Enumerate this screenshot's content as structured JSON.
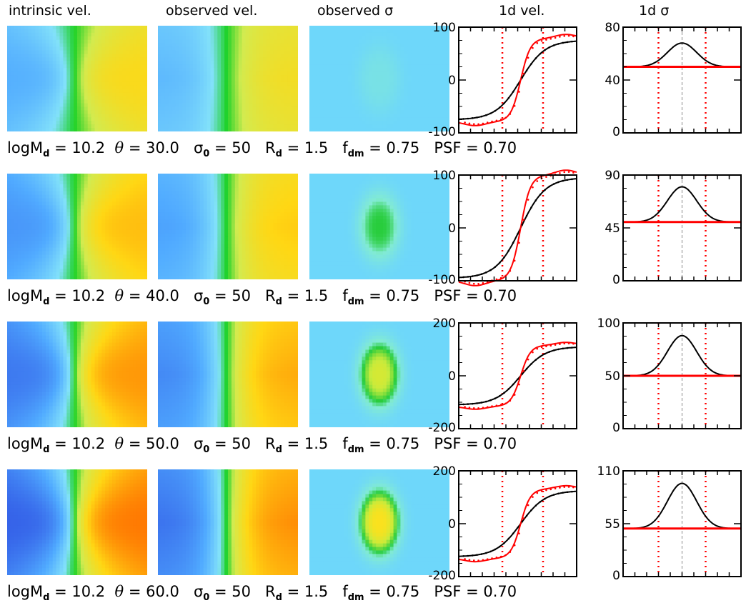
{
  "headers": {
    "intrinsic": "intrinsic vel.",
    "observed_vel": "observed vel.",
    "observed_sigma": "observed σ",
    "vel1d": "1d vel.",
    "sigma1d": "1d σ"
  },
  "colors": {
    "model_curve": "#000000",
    "data_curve": "#ff0000",
    "psf_lines": "#ff0000",
    "center_line": "#888888"
  },
  "rows": [
    {
      "params": {
        "logMd": "10.2",
        "theta": "30.0",
        "sigma0": "50",
        "Rd": "1.5",
        "fdm": "0.75",
        "psf": "0.70"
      },
      "maps": {
        "intr_amp": 0.45,
        "obs_amp": 0.42,
        "sig_strength": 0.18
      },
      "vel_plot": {
        "ylim": [
          -100,
          100
        ],
        "yticks": [
          "100",
          "0",
          "-100"
        ]
      },
      "sig_plot": {
        "ylim": [
          0,
          80
        ],
        "yticks": [
          "80",
          "40",
          "0"
        ],
        "peak": 68,
        "base": 50
      }
    },
    {
      "params": {
        "logMd": "10.2",
        "theta": "40.0",
        "sigma0": "50",
        "Rd": "1.5",
        "fdm": "0.75",
        "psf": "0.70"
      },
      "maps": {
        "intr_amp": 0.6,
        "obs_amp": 0.56,
        "sig_strength": 0.55
      },
      "vel_plot": {
        "ylim": [
          -100,
          100
        ],
        "yticks": [
          "100",
          "0",
          "-100"
        ]
      },
      "sig_plot": {
        "ylim": [
          0,
          90
        ],
        "yticks": [
          "90",
          "45",
          "0"
        ],
        "peak": 80,
        "base": 50
      }
    },
    {
      "params": {
        "logMd": "10.2",
        "theta": "50.0",
        "sigma0": "50",
        "Rd": "1.5",
        "fdm": "0.75",
        "psf": "0.70"
      },
      "maps": {
        "intr_amp": 0.78,
        "obs_amp": 0.72,
        "sig_strength": 0.85
      },
      "vel_plot": {
        "ylim": [
          -200,
          200
        ],
        "yticks": [
          "200",
          "0",
          "-200"
        ]
      },
      "sig_plot": {
        "ylim": [
          0,
          100
        ],
        "yticks": [
          "100",
          "50",
          "0"
        ],
        "peak": 88,
        "base": 50
      }
    },
    {
      "params": {
        "logMd": "10.2",
        "theta": "60.0",
        "sigma0": "50",
        "Rd": "1.5",
        "fdm": "0.75",
        "psf": "0.70"
      },
      "maps": {
        "intr_amp": 0.92,
        "obs_amp": 0.86,
        "sig_strength": 1.0
      },
      "vel_plot": {
        "ylim": [
          -200,
          200
        ],
        "yticks": [
          "200",
          "0",
          "-200"
        ]
      },
      "sig_plot": {
        "ylim": [
          0,
          110
        ],
        "yticks": [
          "110",
          "55",
          "0"
        ],
        "peak": 97,
        "base": 50
      }
    }
  ],
  "chart_data": {
    "type": "line",
    "panels": [
      {
        "name": "1d vel.",
        "rows": 4,
        "velocity_amplitude": [
          75,
          95,
          110,
          125
        ]
      },
      {
        "name": "1d σ",
        "rows": 4,
        "sigma_peak": [
          68,
          80,
          88,
          97
        ],
        "sigma_base": 50
      }
    ]
  }
}
